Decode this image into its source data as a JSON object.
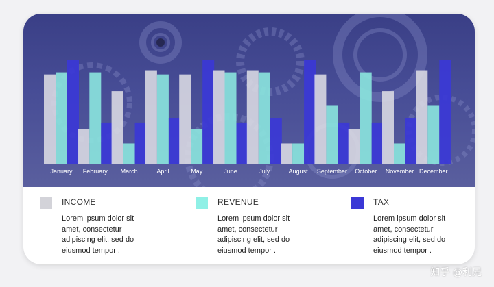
{
  "chart_data": {
    "type": "bar",
    "categories": [
      "January",
      "February",
      "March",
      "April",
      "May",
      "June",
      "July",
      "August",
      "September",
      "October",
      "November",
      "December"
    ],
    "series": [
      {
        "name": "INCOME",
        "color": "#dcdce4",
        "values": [
          43,
          17,
          35,
          45,
          43,
          45,
          45,
          10,
          43,
          17,
          35,
          45
        ]
      },
      {
        "name": "REVENUE",
        "color": "#8be6de",
        "values": [
          44,
          44,
          10,
          43,
          17,
          44,
          44,
          10,
          28,
          44,
          10,
          28
        ]
      },
      {
        "name": "TAX",
        "color": "#3b38d6",
        "values": [
          50,
          20,
          20,
          22,
          50,
          20,
          22,
          50,
          20,
          20,
          22,
          50
        ]
      }
    ],
    "ylim": [
      0,
      55
    ],
    "grid": false,
    "legend_position": "bottom"
  },
  "legend": [
    {
      "label": "INCOME",
      "color": "#d3d3d9",
      "text": "Lorem ipsum dolor sit amet, consectetur adipiscing elit, sed do eiusmod tempor ."
    },
    {
      "label": "REVENUE",
      "color": "#8ff0e6",
      "text": "Lorem ipsum dolor sit amet, consectetur adipiscing elit, sed do eiusmod tempor ."
    },
    {
      "label": "TAX",
      "color": "#3b38d6",
      "text": "Lorem ipsum dolor sit amet, consectetur adipiscing elit, sed do eiusmod tempor ."
    }
  ],
  "watermark": "知乎 @利兄"
}
